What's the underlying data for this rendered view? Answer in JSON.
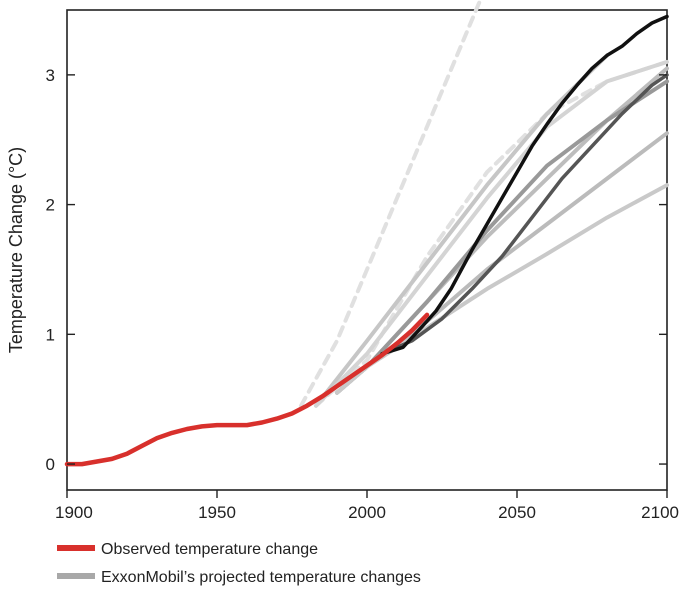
{
  "chart_data": {
    "type": "line",
    "title": "",
    "xlabel": "",
    "ylabel": "Temperature Change (°C)",
    "xlim": [
      1900,
      2100
    ],
    "ylim": [
      -0.2,
      3.5
    ],
    "x_ticks": [
      1900,
      1950,
      2000,
      2050,
      2100
    ],
    "x_tick_labels": [
      "1900",
      "1950",
      "2000",
      "2050",
      "2100"
    ],
    "y_ticks": [
      0,
      1,
      2,
      3
    ],
    "y_tick_labels": [
      "0",
      "1",
      "2",
      "3"
    ],
    "grid": false,
    "legend_placement": "bottom-left",
    "legend": [
      {
        "label": "Observed temperature change",
        "color": "#d8302c"
      },
      {
        "label": "ExxonMobil’s projected temperature changes",
        "color": "#a8a8a8"
      }
    ],
    "series": [
      {
        "color": "#e0e0e0",
        "style": "dashed",
        "points": [
          [
            1978,
            0.45
          ],
          [
            1990,
            0.95
          ],
          [
            2000,
            1.5
          ],
          [
            2010,
            2.05
          ],
          [
            2020,
            2.6
          ],
          [
            2030,
            3.15
          ],
          [
            2040,
            3.7
          ],
          [
            2050,
            4.3
          ]
        ]
      },
      {
        "color": "#e0e0e0",
        "style": "dashed",
        "points": [
          [
            1983,
            0.45
          ],
          [
            2000,
            0.8
          ],
          [
            2020,
            1.6
          ],
          [
            2040,
            2.25
          ],
          [
            2060,
            2.7
          ],
          [
            2080,
            2.95
          ],
          [
            2100,
            3.1
          ]
        ]
      },
      {
        "color": "#c6c6c6",
        "style": "solid",
        "points": [
          [
            1983,
            0.45
          ],
          [
            2000,
            0.95
          ],
          [
            2020,
            1.55
          ],
          [
            2040,
            2.15
          ],
          [
            2060,
            2.7
          ],
          [
            2080,
            3.15
          ]
        ]
      },
      {
        "color": "#d4d4d4",
        "style": "solid",
        "points": [
          [
            1983,
            0.45
          ],
          [
            2000,
            0.85
          ],
          [
            2020,
            1.45
          ],
          [
            2040,
            2.05
          ],
          [
            2060,
            2.6
          ],
          [
            2080,
            2.95
          ],
          [
            2100,
            3.1
          ]
        ]
      },
      {
        "color": "#bdbdbd",
        "style": "solid",
        "points": [
          [
            1990,
            0.55
          ],
          [
            2000,
            0.75
          ],
          [
            2020,
            1.25
          ],
          [
            2040,
            1.75
          ],
          [
            2060,
            2.2
          ],
          [
            2080,
            2.65
          ],
          [
            2100,
            3.05
          ]
        ]
      },
      {
        "color": "#999999",
        "style": "solid",
        "points": [
          [
            1990,
            0.55
          ],
          [
            2000,
            0.75
          ],
          [
            2020,
            1.25
          ],
          [
            2040,
            1.8
          ],
          [
            2060,
            2.3
          ],
          [
            2080,
            2.65
          ],
          [
            2100,
            2.95
          ]
        ]
      },
      {
        "color": "#bbbbbb",
        "style": "solid",
        "points": [
          [
            1990,
            0.55
          ],
          [
            2000,
            0.75
          ],
          [
            2020,
            1.1
          ],
          [
            2040,
            1.5
          ],
          [
            2060,
            1.85
          ],
          [
            2080,
            2.2
          ],
          [
            2100,
            2.55
          ]
        ]
      },
      {
        "color": "#c9c9c9",
        "style": "solid",
        "points": [
          [
            1990,
            0.55
          ],
          [
            2000,
            0.75
          ],
          [
            2020,
            1.05
          ],
          [
            2040,
            1.35
          ],
          [
            2060,
            1.62
          ],
          [
            2080,
            1.9
          ],
          [
            2100,
            2.15
          ]
        ]
      },
      {
        "color": "#555555",
        "style": "solid",
        "points": [
          [
            2005,
            0.85
          ],
          [
            2015,
            0.95
          ],
          [
            2025,
            1.12
          ],
          [
            2035,
            1.35
          ],
          [
            2045,
            1.6
          ],
          [
            2055,
            1.9
          ],
          [
            2065,
            2.2
          ],
          [
            2075,
            2.45
          ],
          [
            2085,
            2.7
          ],
          [
            2095,
            2.92
          ],
          [
            2100,
            3.0
          ]
        ]
      },
      {
        "color": "#111111",
        "style": "solid",
        "points": [
          [
            2005,
            0.85
          ],
          [
            2012,
            0.9
          ],
          [
            2018,
            1.05
          ],
          [
            2023,
            1.18
          ],
          [
            2028,
            1.35
          ],
          [
            2035,
            1.65
          ],
          [
            2040,
            1.85
          ],
          [
            2045,
            2.05
          ],
          [
            2050,
            2.25
          ],
          [
            2055,
            2.45
          ],
          [
            2060,
            2.62
          ],
          [
            2065,
            2.78
          ],
          [
            2070,
            2.92
          ],
          [
            2075,
            3.05
          ],
          [
            2080,
            3.15
          ],
          [
            2085,
            3.22
          ],
          [
            2090,
            3.32
          ],
          [
            2095,
            3.4
          ],
          [
            2100,
            3.45
          ]
        ]
      },
      {
        "color": "#d8302c",
        "style": "solid",
        "points": [
          [
            1900,
            0.0
          ],
          [
            1905,
            0.0
          ],
          [
            1910,
            0.02
          ],
          [
            1915,
            0.04
          ],
          [
            1920,
            0.08
          ],
          [
            1925,
            0.14
          ],
          [
            1930,
            0.2
          ],
          [
            1935,
            0.24
          ],
          [
            1940,
            0.27
          ],
          [
            1945,
            0.29
          ],
          [
            1950,
            0.3
          ],
          [
            1955,
            0.3
          ],
          [
            1960,
            0.3
          ],
          [
            1965,
            0.32
          ],
          [
            1970,
            0.35
          ],
          [
            1975,
            0.39
          ],
          [
            1980,
            0.45
          ],
          [
            1985,
            0.52
          ],
          [
            1990,
            0.6
          ],
          [
            1995,
            0.68
          ],
          [
            2000,
            0.76
          ],
          [
            2005,
            0.84
          ],
          [
            2010,
            0.93
          ],
          [
            2015,
            1.03
          ],
          [
            2020,
            1.15
          ]
        ]
      }
    ]
  }
}
